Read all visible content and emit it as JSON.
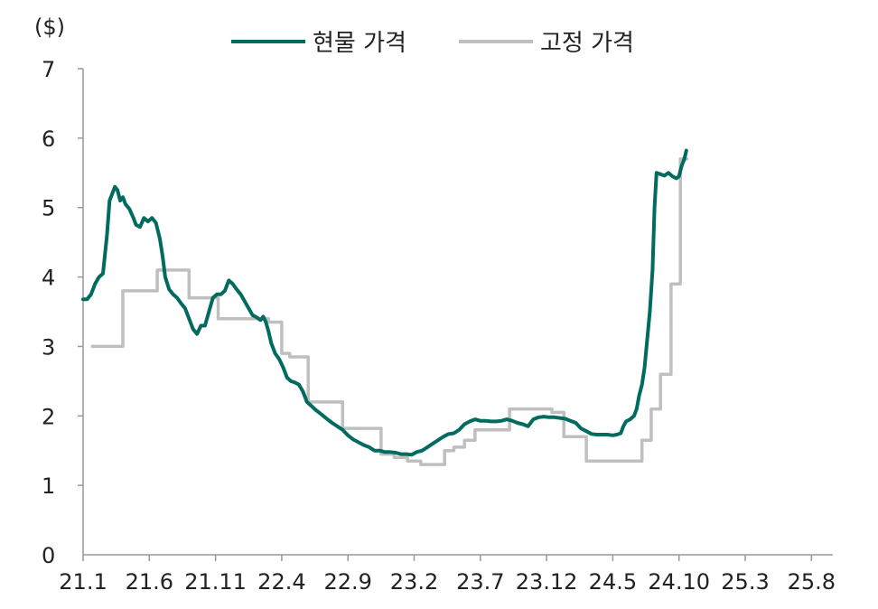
{
  "chart_data": {
    "type": "line",
    "unit_label": "($)",
    "ylim": [
      0,
      7
    ],
    "yticks": [
      "0",
      "1",
      "2",
      "3",
      "4",
      "5",
      "6",
      "7"
    ],
    "xticks": [
      "21.1",
      "21.6",
      "21.11",
      "22.4",
      "22.9",
      "23.2",
      "23.7",
      "23.12",
      "24.5",
      "24.10",
      "25.3",
      "25.8"
    ],
    "grid": false,
    "legend_position": "top",
    "series": [
      {
        "name": "현물 가격",
        "color": "#006b5e",
        "style": "line",
        "points": [
          [
            0,
            3.68
          ],
          [
            0.3,
            3.68
          ],
          [
            0.6,
            3.75
          ],
          [
            0.9,
            3.9
          ],
          [
            1.2,
            4.0
          ],
          [
            1.5,
            4.05
          ],
          [
            1.8,
            4.6
          ],
          [
            2.0,
            5.1
          ],
          [
            2.2,
            5.2
          ],
          [
            2.4,
            5.3
          ],
          [
            2.6,
            5.25
          ],
          [
            2.8,
            5.1
          ],
          [
            3.0,
            5.15
          ],
          [
            3.2,
            5.05
          ],
          [
            3.5,
            4.98
          ],
          [
            3.8,
            4.85
          ],
          [
            4.0,
            4.75
          ],
          [
            4.3,
            4.72
          ],
          [
            4.6,
            4.85
          ],
          [
            4.9,
            4.8
          ],
          [
            5.2,
            4.85
          ],
          [
            5.5,
            4.78
          ],
          [
            5.8,
            4.55
          ],
          [
            6.0,
            4.3
          ],
          [
            6.2,
            4.0
          ],
          [
            6.5,
            3.82
          ],
          [
            6.8,
            3.75
          ],
          [
            7.1,
            3.7
          ],
          [
            7.4,
            3.62
          ],
          [
            7.7,
            3.55
          ],
          [
            8.0,
            3.4
          ],
          [
            8.3,
            3.25
          ],
          [
            8.6,
            3.18
          ],
          [
            8.9,
            3.3
          ],
          [
            9.2,
            3.3
          ],
          [
            9.5,
            3.5
          ],
          [
            9.8,
            3.7
          ],
          [
            10.1,
            3.75
          ],
          [
            10.4,
            3.75
          ],
          [
            10.7,
            3.8
          ],
          [
            11.0,
            3.95
          ],
          [
            11.3,
            3.9
          ],
          [
            11.6,
            3.82
          ],
          [
            11.9,
            3.75
          ],
          [
            12.2,
            3.65
          ],
          [
            12.5,
            3.55
          ],
          [
            12.8,
            3.45
          ],
          [
            13.1,
            3.42
          ],
          [
            13.4,
            3.38
          ],
          [
            13.6,
            3.43
          ],
          [
            13.8,
            3.35
          ],
          [
            14.0,
            3.22
          ],
          [
            14.2,
            3.05
          ],
          [
            14.5,
            2.9
          ],
          [
            14.8,
            2.82
          ],
          [
            15.1,
            2.7
          ],
          [
            15.4,
            2.55
          ],
          [
            15.7,
            2.5
          ],
          [
            16.0,
            2.48
          ],
          [
            16.3,
            2.45
          ],
          [
            16.6,
            2.35
          ],
          [
            16.9,
            2.2
          ],
          [
            17.2,
            2.15
          ],
          [
            17.6,
            2.08
          ],
          [
            18.0,
            2.02
          ],
          [
            18.4,
            1.96
          ],
          [
            18.8,
            1.9
          ],
          [
            19.2,
            1.85
          ],
          [
            19.6,
            1.8
          ],
          [
            20.0,
            1.72
          ],
          [
            20.4,
            1.66
          ],
          [
            20.8,
            1.62
          ],
          [
            21.2,
            1.58
          ],
          [
            21.6,
            1.55
          ],
          [
            22.0,
            1.5
          ],
          [
            22.4,
            1.5
          ],
          [
            22.8,
            1.48
          ],
          [
            23.2,
            1.48
          ],
          [
            23.6,
            1.47
          ],
          [
            24.0,
            1.45
          ],
          [
            24.4,
            1.45
          ],
          [
            24.8,
            1.44
          ],
          [
            25.2,
            1.48
          ],
          [
            25.6,
            1.5
          ],
          [
            26.0,
            1.55
          ],
          [
            26.4,
            1.6
          ],
          [
            26.8,
            1.65
          ],
          [
            27.2,
            1.7
          ],
          [
            27.6,
            1.74
          ],
          [
            28.0,
            1.75
          ],
          [
            28.4,
            1.8
          ],
          [
            28.8,
            1.88
          ],
          [
            29.2,
            1.92
          ],
          [
            29.6,
            1.95
          ],
          [
            30.0,
            1.93
          ],
          [
            30.4,
            1.93
          ],
          [
            30.8,
            1.92
          ],
          [
            31.2,
            1.92
          ],
          [
            31.6,
            1.93
          ],
          [
            32.0,
            1.95
          ],
          [
            32.4,
            1.93
          ],
          [
            32.8,
            1.9
          ],
          [
            33.2,
            1.88
          ],
          [
            33.6,
            1.85
          ],
          [
            34.0,
            1.95
          ],
          [
            34.4,
            1.98
          ],
          [
            34.8,
            1.99
          ],
          [
            35.2,
            1.98
          ],
          [
            35.6,
            1.98
          ],
          [
            36.0,
            1.97
          ],
          [
            36.4,
            1.96
          ],
          [
            36.8,
            1.93
          ],
          [
            37.2,
            1.9
          ],
          [
            37.6,
            1.82
          ],
          [
            38.0,
            1.78
          ],
          [
            38.4,
            1.74
          ],
          [
            38.8,
            1.73
          ],
          [
            39.2,
            1.73
          ],
          [
            39.6,
            1.73
          ],
          [
            40.0,
            1.72
          ],
          [
            40.3,
            1.73
          ],
          [
            40.6,
            1.75
          ],
          [
            40.8,
            1.85
          ],
          [
            41.0,
            1.92
          ],
          [
            41.3,
            1.95
          ],
          [
            41.6,
            2.0
          ],
          [
            41.8,
            2.1
          ],
          [
            42.0,
            2.3
          ],
          [
            42.2,
            2.45
          ],
          [
            42.4,
            2.7
          ],
          [
            42.6,
            3.1
          ],
          [
            42.8,
            3.5
          ],
          [
            43.0,
            4.1
          ],
          [
            43.15,
            5.0
          ],
          [
            43.3,
            5.5
          ],
          [
            43.6,
            5.48
          ],
          [
            43.9,
            5.46
          ],
          [
            44.2,
            5.5
          ],
          [
            44.5,
            5.45
          ],
          [
            44.8,
            5.42
          ],
          [
            45.0,
            5.45
          ],
          [
            45.2,
            5.6
          ],
          [
            45.4,
            5.7
          ],
          [
            45.55,
            5.82
          ]
        ]
      },
      {
        "name": "고정 가격",
        "color": "#bfbfbf",
        "style": "step",
        "points": [
          [
            0.7,
            3.0
          ],
          [
            3.0,
            3.0
          ],
          [
            3.0,
            3.8
          ],
          [
            5.6,
            3.8
          ],
          [
            5.6,
            4.1
          ],
          [
            8.0,
            4.1
          ],
          [
            8.0,
            3.7
          ],
          [
            10.2,
            3.7
          ],
          [
            10.2,
            3.4
          ],
          [
            14.0,
            3.4
          ],
          [
            14.0,
            3.35
          ],
          [
            15.0,
            3.35
          ],
          [
            15.0,
            2.9
          ],
          [
            15.6,
            2.9
          ],
          [
            15.6,
            2.85
          ],
          [
            17.0,
            2.85
          ],
          [
            17.0,
            2.2
          ],
          [
            19.6,
            2.2
          ],
          [
            19.6,
            1.82
          ],
          [
            22.5,
            1.82
          ],
          [
            22.5,
            1.45
          ],
          [
            23.5,
            1.45
          ],
          [
            23.5,
            1.4
          ],
          [
            24.5,
            1.4
          ],
          [
            24.5,
            1.35
          ],
          [
            25.5,
            1.35
          ],
          [
            25.5,
            1.3
          ],
          [
            27.3,
            1.3
          ],
          [
            27.3,
            1.5
          ],
          [
            28.0,
            1.5
          ],
          [
            28.0,
            1.55
          ],
          [
            28.8,
            1.55
          ],
          [
            28.8,
            1.65
          ],
          [
            29.6,
            1.65
          ],
          [
            29.6,
            1.8
          ],
          [
            32.2,
            1.8
          ],
          [
            32.2,
            2.1
          ],
          [
            35.4,
            2.1
          ],
          [
            35.4,
            2.05
          ],
          [
            36.3,
            2.05
          ],
          [
            36.3,
            1.7
          ],
          [
            38.0,
            1.7
          ],
          [
            38.0,
            1.35
          ],
          [
            42.2,
            1.35
          ],
          [
            42.2,
            1.65
          ],
          [
            42.9,
            1.65
          ],
          [
            42.9,
            2.1
          ],
          [
            43.6,
            2.1
          ],
          [
            43.6,
            2.6
          ],
          [
            44.4,
            2.6
          ],
          [
            44.4,
            3.9
          ],
          [
            45.1,
            3.9
          ],
          [
            45.1,
            5.7
          ],
          [
            45.6,
            5.7
          ]
        ]
      }
    ]
  }
}
